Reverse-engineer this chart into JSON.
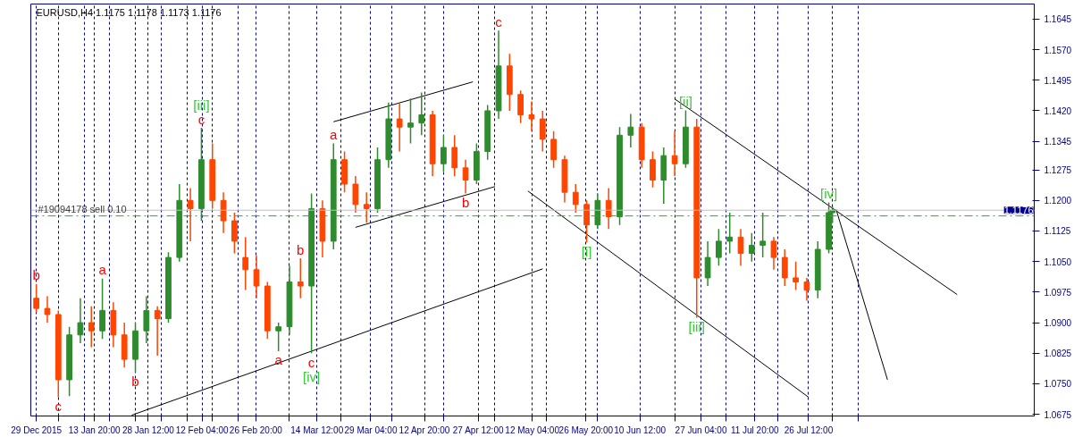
{
  "chart_data": {
    "type": "candlestick",
    "title": "EURUSD,H4  1.1175 1.1178 1.1173 1.1176",
    "x": [
      "2015-12-29",
      "2016-01-01",
      "2016-01-04",
      "2016-01-07",
      "2016-01-10",
      "2016-01-13",
      "2016-01-16",
      "2016-01-19",
      "2016-01-22",
      "2016-01-25",
      "2016-01-28",
      "2016-01-31",
      "2016-02-03",
      "2016-02-06",
      "2016-02-09",
      "2016-02-12",
      "2016-02-15",
      "2016-02-18",
      "2016-02-21",
      "2016-02-24",
      "2016-02-27",
      "2016-03-01",
      "2016-03-04",
      "2016-03-07",
      "2016-03-10",
      "2016-03-13",
      "2016-03-16",
      "2016-03-19",
      "2016-03-22",
      "2016-03-25",
      "2016-03-28",
      "2016-03-31",
      "2016-04-03",
      "2016-04-06",
      "2016-04-09",
      "2016-04-12",
      "2016-04-15",
      "2016-04-18",
      "2016-04-21",
      "2016-04-24",
      "2016-04-27",
      "2016-04-30",
      "2016-05-03",
      "2016-05-06",
      "2016-05-09",
      "2016-05-12",
      "2016-05-15",
      "2016-05-18",
      "2016-05-21",
      "2016-05-24",
      "2016-05-27",
      "2016-05-30",
      "2016-06-02",
      "2016-06-05",
      "2016-06-08",
      "2016-06-11",
      "2016-06-14",
      "2016-06-17",
      "2016-06-20",
      "2016-06-23",
      "2016-06-26",
      "2016-06-29",
      "2016-07-02",
      "2016-07-05",
      "2016-07-08",
      "2016-07-11",
      "2016-07-14",
      "2016-07-17",
      "2016-07-20",
      "2016-07-23",
      "2016-07-26",
      "2016-07-29",
      "2016-08-01",
      "2016-08-02"
    ],
    "ohlc": [
      [
        1.096,
        1.0995,
        1.0925,
        1.0935
      ],
      [
        1.0935,
        1.0965,
        1.09,
        1.092
      ],
      [
        1.092,
        1.093,
        1.0717,
        1.076
      ],
      [
        1.076,
        1.089,
        1.072,
        1.087
      ],
      [
        1.087,
        1.096,
        1.085,
        1.09
      ],
      [
        1.09,
        1.094,
        1.084,
        1.088
      ],
      [
        1.088,
        1.1008,
        1.086,
        1.093
      ],
      [
        1.093,
        1.095,
        1.084,
        1.087
      ],
      [
        1.087,
        1.09,
        1.079,
        1.081
      ],
      [
        1.081,
        1.09,
        1.0778,
        1.088
      ],
      [
        1.088,
        1.0965,
        1.085,
        1.093
      ],
      [
        1.093,
        1.094,
        1.0819,
        1.091
      ],
      [
        1.091,
        1.1073,
        1.09,
        1.106
      ],
      [
        1.106,
        1.124,
        1.105,
        1.12
      ],
      [
        1.12,
        1.123,
        1.11,
        1.118
      ],
      [
        1.118,
        1.1378,
        1.115,
        1.13
      ],
      [
        1.13,
        1.134,
        1.118,
        1.12
      ],
      [
        1.12,
        1.122,
        1.112,
        1.115
      ],
      [
        1.115,
        1.117,
        1.107,
        1.11
      ],
      [
        1.106,
        1.111,
        1.098,
        1.103
      ],
      [
        1.103,
        1.1065,
        1.096,
        1.099
      ],
      [
        1.099,
        1.1,
        1.086,
        1.088
      ],
      [
        1.088,
        1.09,
        1.083,
        1.089
      ],
      [
        1.089,
        1.104,
        1.087,
        1.1
      ],
      [
        1.1,
        1.1058,
        1.096,
        1.099
      ],
      [
        1.099,
        1.1217,
        1.0825,
        1.118
      ],
      [
        1.118,
        1.12,
        1.106,
        1.11
      ],
      [
        1.11,
        1.134,
        1.108,
        1.13
      ],
      [
        1.13,
        1.132,
        1.122,
        1.124
      ],
      [
        1.124,
        1.126,
        1.117,
        1.119
      ],
      [
        1.119,
        1.122,
        1.1145,
        1.118
      ],
      [
        1.118,
        1.133,
        1.117,
        1.13
      ],
      [
        1.13,
        1.144,
        1.128,
        1.14
      ],
      [
        1.14,
        1.144,
        1.132,
        1.138
      ],
      [
        1.138,
        1.145,
        1.134,
        1.139
      ],
      [
        1.139,
        1.1465,
        1.136,
        1.141
      ],
      [
        1.141,
        1.142,
        1.126,
        1.129
      ],
      [
        1.129,
        1.136,
        1.127,
        1.133
      ],
      [
        1.133,
        1.136,
        1.126,
        1.128
      ],
      [
        1.128,
        1.13,
        1.1217,
        1.125
      ],
      [
        1.125,
        1.134,
        1.124,
        1.132
      ],
      [
        1.132,
        1.1434,
        1.13,
        1.142
      ],
      [
        1.142,
        1.1617,
        1.14,
        1.153
      ],
      [
        1.153,
        1.156,
        1.142,
        1.146
      ],
      [
        1.146,
        1.147,
        1.139,
        1.141
      ],
      [
        1.141,
        1.1443,
        1.137,
        1.14
      ],
      [
        1.14,
        1.142,
        1.132,
        1.135
      ],
      [
        1.135,
        1.137,
        1.128,
        1.13
      ],
      [
        1.13,
        1.131,
        1.1195,
        1.122
      ],
      [
        1.122,
        1.124,
        1.117,
        1.119
      ],
      [
        1.119,
        1.12,
        1.1097,
        1.114
      ],
      [
        1.114,
        1.1217,
        1.113,
        1.12
      ],
      [
        1.12,
        1.123,
        1.113,
        1.116
      ],
      [
        1.116,
        1.138,
        1.114,
        1.136
      ],
      [
        1.136,
        1.1412,
        1.133,
        1.138
      ],
      [
        1.138,
        1.139,
        1.128,
        1.13
      ],
      [
        1.13,
        1.132,
        1.1232,
        1.125
      ],
      [
        1.125,
        1.133,
        1.1192,
        1.131
      ],
      [
        1.131,
        1.137,
        1.126,
        1.129
      ],
      [
        1.129,
        1.1421,
        1.128,
        1.138
      ],
      [
        1.138,
        1.14,
        1.0912,
        1.101
      ],
      [
        1.101,
        1.11,
        1.099,
        1.106
      ],
      [
        1.106,
        1.113,
        1.104,
        1.11
      ],
      [
        1.11,
        1.117,
        1.107,
        1.111
      ],
      [
        1.111,
        1.113,
        1.104,
        1.107
      ],
      [
        1.107,
        1.112,
        1.105,
        1.109
      ],
      [
        1.109,
        1.117,
        1.106,
        1.11
      ],
      [
        1.11,
        1.111,
        1.103,
        1.106
      ],
      [
        1.106,
        1.108,
        1.099,
        1.101
      ],
      [
        1.101,
        1.105,
        1.098,
        1.1
      ],
      [
        1.1,
        1.101,
        1.0954,
        1.098
      ],
      [
        1.098,
        1.11,
        1.096,
        1.108
      ],
      [
        1.108,
        1.1195,
        1.107,
        1.117
      ],
      [
        1.117,
        1.1185,
        1.1145,
        1.1176
      ]
    ],
    "colors": [
      "#ff4500",
      "#ff4500",
      "#ff4500",
      "#2e8b2e",
      "#2e8b2e",
      "#ff4500",
      "#2e8b2e",
      "#ff4500",
      "#ff4500",
      "#2e8b2e",
      "#2e8b2e",
      "#ff4500",
      "#2e8b2e",
      "#2e8b2e",
      "#ff4500",
      "#2e8b2e",
      "#ff4500",
      "#ff4500",
      "#ff4500",
      "#ff4500",
      "#ff4500",
      "#ff4500",
      "#2e8b2e",
      "#2e8b2e",
      "#ff4500",
      "#2e8b2e",
      "#ff4500",
      "#2e8b2e",
      "#ff4500",
      "#ff4500",
      "#ff4500",
      "#2e8b2e",
      "#2e8b2e",
      "#ff4500",
      "#2e8b2e",
      "#2e8b2e",
      "#ff4500",
      "#2e8b2e",
      "#ff4500",
      "#ff4500",
      "#2e8b2e",
      "#2e8b2e",
      "#2e8b2e",
      "#ff4500",
      "#ff4500",
      "#ff4500",
      "#ff4500",
      "#ff4500",
      "#ff4500",
      "#ff4500",
      "#ff4500",
      "#2e8b2e",
      "#ff4500",
      "#2e8b2e",
      "#2e8b2e",
      "#ff4500",
      "#ff4500",
      "#2e8b2e",
      "#ff4500",
      "#2e8b2e",
      "#ff4500",
      "#2e8b2e",
      "#2e8b2e",
      "#2e8b2e",
      "#ff4500",
      "#2e8b2e",
      "#2e8b2e",
      "#ff4500",
      "#ff4500",
      "#ff4500",
      "#ff4500",
      "#2e8b2e",
      "#2e8b2e",
      "#2e8b2e"
    ],
    "series": [
      {
        "type": "line",
        "color": "#000000",
        "x": [
          "2016-01-24",
          "2016-05-15"
        ],
        "values": [
          1.0673,
          1.1032
        ]
      },
      {
        "type": "line",
        "color": "#000000",
        "x": [
          "2016-03-19",
          "2016-04-26"
        ],
        "values": [
          1.1393,
          1.1491
        ]
      },
      {
        "type": "line",
        "color": "#000000",
        "x": [
          "2016-03-25",
          "2016-05-02"
        ],
        "values": [
          1.1134,
          1.1234
        ]
      },
      {
        "type": "line",
        "color": "#000000",
        "x": [
          "2016-05-11",
          "2016-07-26T12:00"
        ],
        "values": [
          1.1223,
          1.0717
        ]
      },
      {
        "type": "line",
        "color": "#000000",
        "x": [
          "2016-06-20",
          "2016-09-05"
        ],
        "values": [
          1.1449,
          1.0969
        ]
      },
      {
        "type": "line",
        "color": "#000000",
        "x": [
          "2016-08-03",
          "2016-08-17"
        ],
        "values": [
          1.1178,
          1.076
        ]
      }
    ],
    "xlim": [
      "2015-12-27T12:00",
      "2016-09-26"
    ],
    "xticks": [
      {
        "value": "2015-12-29",
        "label": "29 Dec 2015"
      },
      {
        "value": "2016-01-13T20:00",
        "label": "13 Jan 20:00"
      },
      {
        "value": "2016-01-28T12:00",
        "label": "28 Jan 12:00"
      },
      {
        "value": "2016-02-12T04:00",
        "label": "12 Feb 04:00"
      },
      {
        "value": "2016-02-26T20:00",
        "label": "26 Feb 20:00"
      },
      {
        "value": "2016-03-14T12:00",
        "label": "14 Mar 12:00"
      },
      {
        "value": "2016-03-29T04:00",
        "label": "29 Mar 04:00"
      },
      {
        "value": "2016-04-12T20:00",
        "label": "12 Apr 20:00"
      },
      {
        "value": "2016-04-27T12:00",
        "label": "27 Apr 12:00"
      },
      {
        "value": "2016-05-12T04:00",
        "label": "12 May 04:00"
      },
      {
        "value": "2016-05-26T20:00",
        "label": "26 May 20:00"
      },
      {
        "value": "2016-06-10T12:00",
        "label": "10 Jun 12:00"
      },
      {
        "value": "2016-06-27T04:00",
        "label": "27 Jun 04:00"
      },
      {
        "value": "2016-07-11T20:00",
        "label": "11 Jul 20:00"
      },
      {
        "value": "2016-07-26T12:00",
        "label": "26 Jul 12:00"
      },
      {
        "value": "2016-01-04",
        "label": null
      },
      {
        "value": "2016-01-11",
        "label": null
      },
      {
        "value": "2016-01-18",
        "label": null
      },
      {
        "value": "2016-01-25",
        "label": null
      },
      {
        "value": "2016-02-01",
        "label": null
      },
      {
        "value": "2016-02-08",
        "label": null
      },
      {
        "value": "2016-02-15",
        "label": null
      },
      {
        "value": "2016-02-22",
        "label": null
      },
      {
        "value": "2016-03-07",
        "label": null
      },
      {
        "value": "2016-03-21",
        "label": null
      },
      {
        "value": "2016-04-04",
        "label": null
      },
      {
        "value": "2016-04-18",
        "label": null
      },
      {
        "value": "2016-05-02",
        "label": null
      },
      {
        "value": "2016-05-16",
        "label": null
      },
      {
        "value": "2016-05-30",
        "label": null
      },
      {
        "value": "2016-06-20",
        "label": null
      },
      {
        "value": "2016-07-04",
        "label": null
      },
      {
        "value": "2016-07-18",
        "label": null
      },
      {
        "value": "2016-08-02",
        "label": null
      },
      {
        "value": "2016-08-09",
        "label": null
      }
    ],
    "ylim": [
      1.0671,
      1.1682
    ],
    "yticks": [
      {
        "value": 1.1645,
        "label": "1.1645"
      },
      {
        "value": 1.157,
        "label": "1.1570"
      },
      {
        "value": 1.1495,
        "label": "1.1495"
      },
      {
        "value": 1.142,
        "label": "1.1420"
      },
      {
        "value": 1.1345,
        "label": "1.1345"
      },
      {
        "value": 1.1275,
        "label": "1.1275"
      },
      {
        "value": 1.12,
        "label": "1.1200"
      },
      {
        "value": 1.1125,
        "label": "1.1125"
      },
      {
        "value": 1.105,
        "label": "1.1050"
      },
      {
        "value": 1.0975,
        "label": "1.0975"
      },
      {
        "value": 1.09,
        "label": "1.0900"
      },
      {
        "value": 1.0825,
        "label": "1.0825"
      },
      {
        "value": 1.075,
        "label": "1.0750"
      },
      {
        "value": 1.0675,
        "label": "1.0675"
      }
    ],
    "grid": "x",
    "ref_lines": [
      {
        "axis": "y",
        "value": 1.1176,
        "label": "1.1176",
        "color": "#c0c0c0"
      },
      {
        "axis": "y",
        "value": 1.1162,
        "label": "#19094178 sell 0.10",
        "color": "#00c800",
        "line_style": "dashdot"
      }
    ],
    "annotations": [
      {
        "text": "b",
        "x": "2015-12-29",
        "y": 1.0995
      },
      {
        "text": "c",
        "x": "2016-01-04",
        "y": 1.0717
      },
      {
        "text": "a",
        "x": "2016-01-16",
        "y": 1.1008
      },
      {
        "text": "b",
        "x": "2016-01-25",
        "y": 1.0778
      },
      {
        "text": "c",
        "x": "2016-02-12",
        "y": 1.1378
      },
      {
        "text": "[iii]",
        "x": "2016-02-12",
        "y": 1.1378
      },
      {
        "text": "a",
        "x": "2016-03-04",
        "y": 1.083
      },
      {
        "text": "b",
        "x": "2016-03-10",
        "y": 1.1058
      },
      {
        "text": "c",
        "x": "2016-03-13",
        "y": 1.0825
      },
      {
        "text": "[iv]",
        "x": "2016-03-13",
        "y": 1.0825
      },
      {
        "text": "a",
        "x": "2016-03-19",
        "y": 1.134
      },
      {
        "text": "b",
        "x": "2016-04-24",
        "y": 1.1217
      },
      {
        "text": "c",
        "x": "2016-05-03",
        "y": 1.1617
      },
      {
        "text": "[i]",
        "x": "2016-05-27",
        "y": 1.1097
      },
      {
        "text": "[ii]",
        "x": "2016-06-23",
        "y": 1.1421
      },
      {
        "text": "[iii]",
        "x": "2016-06-26",
        "y": 1.0912
      },
      {
        "text": "[iv]",
        "x": "2016-08-01",
        "y": 1.1195
      }
    ]
  }
}
